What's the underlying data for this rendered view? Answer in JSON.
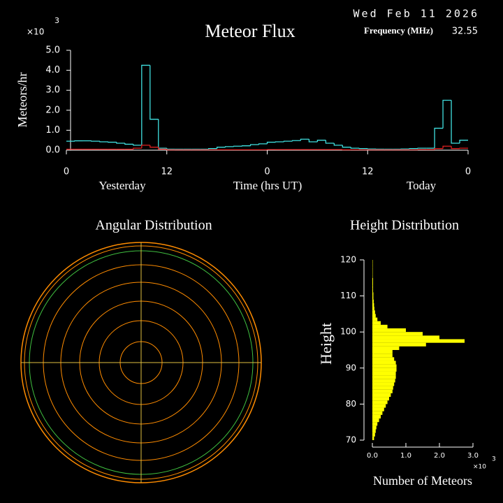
{
  "header": {
    "date": "Wed Feb 11 2026",
    "frequency_label": "Frequency (MHz)",
    "frequency": "32.55"
  },
  "chart_data": [
    {
      "type": "step",
      "title": "Meteor Flux",
      "ylabel": "Meteors/hr",
      "scale_base": "×10",
      "scale_exponent": "3",
      "xlabel": "Time (hrs UT)",
      "day_labels": [
        "Yesterday",
        "Today"
      ],
      "xlim": [
        0,
        48
      ],
      "xticks": [
        {
          "value": 0,
          "label": "0"
        },
        {
          "value": 12,
          "label": "12"
        },
        {
          "value": 24,
          "label": "0"
        },
        {
          "value": 36,
          "label": "12"
        },
        {
          "value": 48,
          "label": "0"
        }
      ],
      "ylim": [
        0,
        5
      ],
      "yticks": [
        {
          "value": 0,
          "label": "0.0"
        },
        {
          "value": 1,
          "label": "1.0"
        },
        {
          "value": 2,
          "label": "2.0"
        },
        {
          "value": 3,
          "label": "3.0"
        },
        {
          "value": 4,
          "label": "4.0"
        },
        {
          "value": 5,
          "label": "5.0"
        }
      ],
      "series": [
        {
          "color": "#40e0e0",
          "values": [
            0.45,
            0.47,
            0.47,
            0.45,
            0.42,
            0.4,
            0.35,
            0.3,
            0.25,
            4.25,
            1.55,
            0.1,
            0.05,
            0.05,
            0.05,
            0.05,
            0.05,
            0.08,
            0.15,
            0.18,
            0.2,
            0.22,
            0.28,
            0.32,
            0.4,
            0.42,
            0.45,
            0.48,
            0.55,
            0.42,
            0.5,
            0.35,
            0.25,
            0.15,
            0.1,
            0.08,
            0.06,
            0.05,
            0.05,
            0.05,
            0.06,
            0.08,
            0.1,
            0.1,
            1.1,
            2.5,
            0.35,
            0.5
          ]
        },
        {
          "color": "#e02020",
          "values": [
            0.05,
            0.05,
            0.05,
            0.05,
            0.05,
            0.05,
            0.05,
            0.05,
            0.1,
            0.25,
            0.15,
            0.05,
            0.02,
            0.02,
            0.02,
            0.02,
            0.02,
            0.02,
            0.02,
            0.02,
            0.02,
            0.02,
            0.02,
            0.02,
            0.03,
            0.03,
            0.03,
            0.03,
            0.03,
            0.03,
            0.03,
            0.03,
            0.03,
            0.02,
            0.02,
            0.02,
            0.02,
            0.02,
            0.02,
            0.02,
            0.02,
            0.02,
            0.03,
            0.03,
            0.08,
            0.2,
            0.08,
            0.1
          ]
        }
      ]
    },
    {
      "type": "polar",
      "title": "Angular Distribution"
    },
    {
      "type": "histogram",
      "title": "Height Distribution",
      "ylabel": "Height",
      "xlabel": "Number of Meteors",
      "scale_base": "×10",
      "scale_exponent": "3",
      "color": "#ffff00",
      "bins": [
        70,
        71,
        72,
        73,
        74,
        75,
        76,
        77,
        78,
        79,
        80,
        81,
        82,
        83,
        84,
        85,
        86,
        87,
        88,
        89,
        90,
        91,
        92,
        93,
        94,
        95,
        96,
        97,
        98,
        99,
        100,
        101,
        102,
        103,
        104,
        105,
        106,
        107,
        108,
        109,
        110,
        111,
        112,
        113,
        114,
        115,
        116,
        117,
        118,
        119,
        120
      ],
      "values": [
        0.05,
        0.08,
        0.1,
        0.12,
        0.15,
        0.2,
        0.25,
        0.3,
        0.35,
        0.4,
        0.45,
        0.5,
        0.55,
        0.6,
        0.62,
        0.65,
        0.68,
        0.7,
        0.7,
        0.72,
        0.72,
        0.7,
        0.65,
        0.6,
        0.6,
        0.8,
        1.6,
        2.75,
        2.0,
        1.5,
        1.0,
        0.45,
        0.25,
        0.15,
        0.1,
        0.08,
        0.06,
        0.05,
        0.04,
        0.03,
        0.03,
        0.02,
        0.02,
        0.02,
        0.02,
        0.01,
        0.01,
        0.01,
        0.01,
        0.01
      ],
      "ylim": [
        70,
        120
      ],
      "yticks": [
        70,
        80,
        90,
        100,
        110,
        120
      ],
      "xlim": [
        0,
        3
      ],
      "xticks": [
        {
          "value": 0,
          "label": "0.0"
        },
        {
          "value": 1,
          "label": "1.0"
        },
        {
          "value": 2,
          "label": "2.0"
        },
        {
          "value": 3,
          "label": "3.0"
        }
      ]
    }
  ]
}
